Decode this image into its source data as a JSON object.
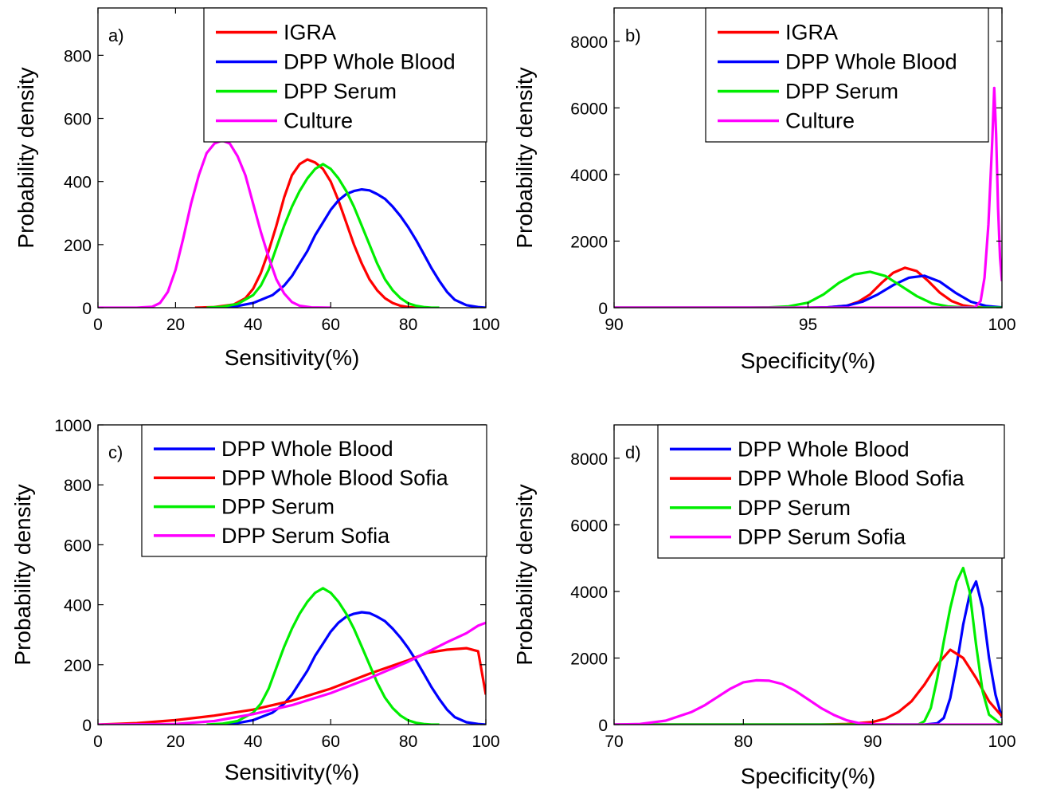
{
  "chart_data": [
    {
      "panel_label": "a)",
      "type": "line",
      "xlabel": "Sensitivity(%)",
      "ylabel": "Probability density",
      "xlim": [
        0,
        100
      ],
      "ylim": [
        0,
        950
      ],
      "xticks": [
        0,
        20,
        40,
        60,
        80,
        100
      ],
      "yticks": [
        0,
        200,
        400,
        600,
        800
      ],
      "legend": "top-right",
      "series": [
        {
          "name": "IGRA",
          "color": "#ff0000",
          "x": [
            25,
            30,
            35,
            38,
            40,
            42,
            44,
            46,
            48,
            50,
            52,
            54,
            56,
            58,
            60,
            62,
            64,
            66,
            68,
            70,
            72,
            74,
            76,
            78,
            80,
            82,
            84
          ],
          "y": [
            0,
            2,
            10,
            30,
            60,
            110,
            180,
            260,
            350,
            420,
            455,
            470,
            460,
            440,
            400,
            340,
            270,
            200,
            140,
            90,
            55,
            30,
            15,
            6,
            2,
            0,
            0
          ]
        },
        {
          "name": "DPP Whole Blood",
          "color": "#0000ff",
          "x": [
            30,
            35,
            40,
            45,
            48,
            50,
            52,
            54,
            56,
            58,
            60,
            62,
            64,
            66,
            68,
            70,
            72,
            74,
            76,
            78,
            80,
            82,
            84,
            86,
            88,
            90,
            92,
            95,
            98,
            100
          ],
          "y": [
            0,
            3,
            15,
            40,
            70,
            100,
            140,
            180,
            230,
            270,
            310,
            340,
            360,
            370,
            375,
            372,
            360,
            345,
            320,
            290,
            255,
            215,
            170,
            125,
            85,
            50,
            25,
            8,
            2,
            0
          ]
        },
        {
          "name": "DPP Serum",
          "color": "#00ee00",
          "x": [
            28,
            32,
            36,
            40,
            42,
            44,
            46,
            48,
            50,
            52,
            54,
            56,
            58,
            60,
            62,
            64,
            66,
            68,
            70,
            72,
            74,
            76,
            78,
            80,
            82,
            84,
            86,
            88
          ],
          "y": [
            0,
            3,
            12,
            40,
            70,
            120,
            190,
            260,
            320,
            370,
            410,
            440,
            455,
            440,
            410,
            370,
            320,
            260,
            200,
            140,
            90,
            55,
            30,
            14,
            6,
            2,
            0,
            0
          ]
        },
        {
          "name": "Culture",
          "color": "#ff00ff",
          "x": [
            0,
            10,
            14,
            16,
            18,
            20,
            22,
            24,
            26,
            28,
            30,
            32,
            34,
            36,
            38,
            40,
            42,
            44,
            46,
            48,
            50,
            52,
            55,
            60
          ],
          "y": [
            0,
            0,
            3,
            15,
            50,
            120,
            220,
            330,
            420,
            490,
            520,
            530,
            520,
            480,
            420,
            330,
            240,
            160,
            90,
            45,
            18,
            6,
            1,
            0
          ]
        }
      ]
    },
    {
      "panel_label": "b)",
      "type": "line",
      "xlabel": "Specificity(%)",
      "ylabel": "Probability density",
      "xlim": [
        90,
        100
      ],
      "ylim": [
        0,
        9000
      ],
      "xticks": [
        90,
        95,
        100
      ],
      "yticks": [
        0,
        2000,
        4000,
        6000,
        8000
      ],
      "legend": "top-right",
      "series": [
        {
          "name": "IGRA",
          "color": "#ff0000",
          "x": [
            90,
            95,
            95.5,
            96,
            96.3,
            96.6,
            96.9,
            97.2,
            97.5,
            97.8,
            98.1,
            98.4,
            98.7,
            99,
            99.3,
            99.6,
            100
          ],
          "y": [
            0,
            0,
            10,
            60,
            180,
            400,
            750,
            1050,
            1200,
            1100,
            800,
            450,
            200,
            70,
            20,
            5,
            0
          ]
        },
        {
          "name": "DPP Whole Blood",
          "color": "#0000ff",
          "x": [
            90,
            95,
            95.5,
            96,
            96.4,
            96.8,
            97.2,
            97.6,
            98,
            98.4,
            98.8,
            99.2,
            99.6,
            100
          ],
          "y": [
            0,
            0,
            10,
            60,
            180,
            400,
            680,
            900,
            960,
            780,
            450,
            180,
            50,
            10
          ]
        },
        {
          "name": "DPP Serum",
          "color": "#00ee00",
          "x": [
            90,
            93.5,
            94,
            94.5,
            95,
            95.4,
            95.8,
            96.2,
            96.6,
            97,
            97.4,
            97.8,
            98.2,
            98.6,
            99,
            99.5,
            100
          ],
          "y": [
            0,
            0,
            10,
            40,
            150,
            400,
            750,
            1000,
            1080,
            950,
            650,
            350,
            130,
            40,
            10,
            0,
            0
          ]
        },
        {
          "name": "Culture",
          "color": "#ff00ff",
          "x": [
            90,
            99.3,
            99.45,
            99.55,
            99.65,
            99.75,
            99.8,
            99.85,
            99.9,
            99.95,
            100
          ],
          "y": [
            0,
            0,
            200,
            900,
            2500,
            5000,
            6600,
            5200,
            3000,
            1500,
            800
          ]
        }
      ]
    },
    {
      "panel_label": "c)",
      "type": "line",
      "xlabel": "Sensitivity(%)",
      "ylabel": "Probability density",
      "xlim": [
        0,
        100
      ],
      "ylim": [
        0,
        1000
      ],
      "xticks": [
        0,
        20,
        40,
        60,
        80,
        100
      ],
      "yticks": [
        0,
        200,
        400,
        600,
        800,
        1000
      ],
      "legend": "top-right",
      "series": [
        {
          "name": "DPP Whole Blood",
          "color": "#0000ff",
          "x": [
            30,
            35,
            40,
            45,
            48,
            50,
            52,
            54,
            56,
            58,
            60,
            62,
            64,
            66,
            68,
            70,
            72,
            74,
            76,
            78,
            80,
            82,
            84,
            86,
            88,
            90,
            92,
            95,
            98,
            100
          ],
          "y": [
            0,
            3,
            15,
            40,
            70,
            100,
            140,
            180,
            230,
            270,
            310,
            340,
            360,
            370,
            375,
            372,
            360,
            345,
            320,
            290,
            255,
            215,
            170,
            125,
            85,
            50,
            25,
            8,
            2,
            0
          ]
        },
        {
          "name": "DPP Whole Blood Sofia",
          "color": "#ff0000",
          "x": [
            0,
            10,
            20,
            30,
            40,
            50,
            60,
            70,
            80,
            85,
            90,
            95,
            98,
            100
          ],
          "y": [
            0,
            5,
            15,
            30,
            50,
            80,
            120,
            170,
            215,
            240,
            250,
            255,
            245,
            100
          ]
        },
        {
          "name": "DPP Serum",
          "color": "#00ee00",
          "x": [
            28,
            32,
            36,
            40,
            42,
            44,
            46,
            48,
            50,
            52,
            54,
            56,
            58,
            60,
            62,
            64,
            66,
            68,
            70,
            72,
            74,
            76,
            78,
            80,
            82,
            84,
            86,
            88
          ],
          "y": [
            0,
            3,
            12,
            40,
            70,
            120,
            190,
            260,
            320,
            370,
            410,
            440,
            455,
            440,
            410,
            370,
            320,
            260,
            200,
            140,
            90,
            55,
            30,
            14,
            6,
            2,
            0,
            0
          ]
        },
        {
          "name": "DPP Serum Sofia",
          "color": "#ff00ff",
          "x": [
            0,
            20,
            30,
            40,
            50,
            60,
            70,
            80,
            90,
            95,
            98,
            100
          ],
          "y": [
            0,
            2,
            12,
            35,
            65,
            105,
            155,
            210,
            275,
            305,
            330,
            340
          ]
        }
      ]
    },
    {
      "panel_label": "d)",
      "type": "line",
      "xlabel": "Specificity(%)",
      "ylabel": "Probability density",
      "xlim": [
        70,
        100
      ],
      "ylim": [
        0,
        9000
      ],
      "xticks": [
        70,
        80,
        90,
        100
      ],
      "yticks": [
        0,
        2000,
        4000,
        6000,
        8000
      ],
      "legend": "top-right",
      "series": [
        {
          "name": "DPP Whole Blood",
          "color": "#0000ff",
          "x": [
            70,
            94,
            95,
            95.5,
            96,
            96.5,
            97,
            97.5,
            98,
            98.5,
            99,
            99.5,
            100
          ],
          "y": [
            0,
            0,
            40,
            200,
            800,
            1800,
            3000,
            3900,
            4300,
            3500,
            2000,
            900,
            200
          ]
        },
        {
          "name": "DPP Whole Blood Sofia",
          "color": "#ff0000",
          "x": [
            70,
            86,
            88,
            90,
            91,
            92,
            93,
            94,
            95,
            96,
            97,
            98,
            99,
            100
          ],
          "y": [
            0,
            0,
            20,
            80,
            180,
            380,
            700,
            1200,
            1800,
            2250,
            2000,
            1400,
            700,
            250
          ]
        },
        {
          "name": "DPP Serum",
          "color": "#00ee00",
          "x": [
            70,
            93.5,
            94,
            94.5,
            95,
            95.5,
            96,
            96.5,
            97,
            97.5,
            98,
            98.5,
            99,
            100
          ],
          "y": [
            0,
            0,
            100,
            500,
            1400,
            2500,
            3500,
            4300,
            4700,
            4000,
            2400,
            1000,
            300,
            0
          ]
        },
        {
          "name": "DPP Serum Sofia",
          "color": "#ff00ff",
          "x": [
            70,
            72,
            74,
            76,
            77,
            78,
            79,
            80,
            81,
            82,
            83,
            84,
            85,
            86,
            87,
            88,
            89,
            90,
            92,
            100
          ],
          "y": [
            0,
            20,
            120,
            380,
            580,
            830,
            1080,
            1270,
            1330,
            1320,
            1220,
            1020,
            760,
            500,
            290,
            130,
            40,
            10,
            0,
            0
          ]
        }
      ]
    }
  ]
}
